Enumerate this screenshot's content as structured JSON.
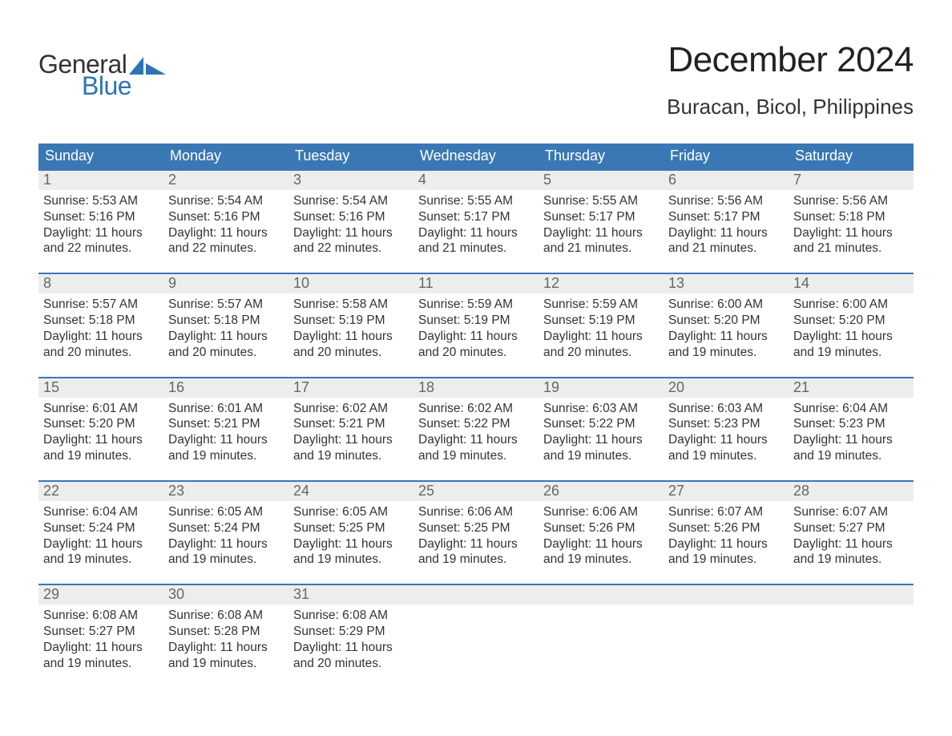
{
  "logo": {
    "text_general": "General",
    "text_blue": "Blue"
  },
  "title": "December 2024",
  "location": "Buracan, Bicol, Philippines",
  "colors": {
    "header_bg": "#3a78b5",
    "daynum_bg": "#ededed",
    "body_text": "#333333",
    "header_text": "#ffffff",
    "logo_blue": "#2f73b4",
    "page_bg": "#ffffff"
  },
  "day_headers": [
    "Sunday",
    "Monday",
    "Tuesday",
    "Wednesday",
    "Thursday",
    "Friday",
    "Saturday"
  ],
  "weeks": [
    [
      {
        "n": "1",
        "sunrise": "5:53 AM",
        "sunset": "5:16 PM",
        "daylight": "11 hours and 22 minutes."
      },
      {
        "n": "2",
        "sunrise": "5:54 AM",
        "sunset": "5:16 PM",
        "daylight": "11 hours and 22 minutes."
      },
      {
        "n": "3",
        "sunrise": "5:54 AM",
        "sunset": "5:16 PM",
        "daylight": "11 hours and 22 minutes."
      },
      {
        "n": "4",
        "sunrise": "5:55 AM",
        "sunset": "5:17 PM",
        "daylight": "11 hours and 21 minutes."
      },
      {
        "n": "5",
        "sunrise": "5:55 AM",
        "sunset": "5:17 PM",
        "daylight": "11 hours and 21 minutes."
      },
      {
        "n": "6",
        "sunrise": "5:56 AM",
        "sunset": "5:17 PM",
        "daylight": "11 hours and 21 minutes."
      },
      {
        "n": "7",
        "sunrise": "5:56 AM",
        "sunset": "5:18 PM",
        "daylight": "11 hours and 21 minutes."
      }
    ],
    [
      {
        "n": "8",
        "sunrise": "5:57 AM",
        "sunset": "5:18 PM",
        "daylight": "11 hours and 20 minutes."
      },
      {
        "n": "9",
        "sunrise": "5:57 AM",
        "sunset": "5:18 PM",
        "daylight": "11 hours and 20 minutes."
      },
      {
        "n": "10",
        "sunrise": "5:58 AM",
        "sunset": "5:19 PM",
        "daylight": "11 hours and 20 minutes."
      },
      {
        "n": "11",
        "sunrise": "5:59 AM",
        "sunset": "5:19 PM",
        "daylight": "11 hours and 20 minutes."
      },
      {
        "n": "12",
        "sunrise": "5:59 AM",
        "sunset": "5:19 PM",
        "daylight": "11 hours and 20 minutes."
      },
      {
        "n": "13",
        "sunrise": "6:00 AM",
        "sunset": "5:20 PM",
        "daylight": "11 hours and 19 minutes."
      },
      {
        "n": "14",
        "sunrise": "6:00 AM",
        "sunset": "5:20 PM",
        "daylight": "11 hours and 19 minutes."
      }
    ],
    [
      {
        "n": "15",
        "sunrise": "6:01 AM",
        "sunset": "5:20 PM",
        "daylight": "11 hours and 19 minutes."
      },
      {
        "n": "16",
        "sunrise": "6:01 AM",
        "sunset": "5:21 PM",
        "daylight": "11 hours and 19 minutes."
      },
      {
        "n": "17",
        "sunrise": "6:02 AM",
        "sunset": "5:21 PM",
        "daylight": "11 hours and 19 minutes."
      },
      {
        "n": "18",
        "sunrise": "6:02 AM",
        "sunset": "5:22 PM",
        "daylight": "11 hours and 19 minutes."
      },
      {
        "n": "19",
        "sunrise": "6:03 AM",
        "sunset": "5:22 PM",
        "daylight": "11 hours and 19 minutes."
      },
      {
        "n": "20",
        "sunrise": "6:03 AM",
        "sunset": "5:23 PM",
        "daylight": "11 hours and 19 minutes."
      },
      {
        "n": "21",
        "sunrise": "6:04 AM",
        "sunset": "5:23 PM",
        "daylight": "11 hours and 19 minutes."
      }
    ],
    [
      {
        "n": "22",
        "sunrise": "6:04 AM",
        "sunset": "5:24 PM",
        "daylight": "11 hours and 19 minutes."
      },
      {
        "n": "23",
        "sunrise": "6:05 AM",
        "sunset": "5:24 PM",
        "daylight": "11 hours and 19 minutes."
      },
      {
        "n": "24",
        "sunrise": "6:05 AM",
        "sunset": "5:25 PM",
        "daylight": "11 hours and 19 minutes."
      },
      {
        "n": "25",
        "sunrise": "6:06 AM",
        "sunset": "5:25 PM",
        "daylight": "11 hours and 19 minutes."
      },
      {
        "n": "26",
        "sunrise": "6:06 AM",
        "sunset": "5:26 PM",
        "daylight": "11 hours and 19 minutes."
      },
      {
        "n": "27",
        "sunrise": "6:07 AM",
        "sunset": "5:26 PM",
        "daylight": "11 hours and 19 minutes."
      },
      {
        "n": "28",
        "sunrise": "6:07 AM",
        "sunset": "5:27 PM",
        "daylight": "11 hours and 19 minutes."
      }
    ],
    [
      {
        "n": "29",
        "sunrise": "6:08 AM",
        "sunset": "5:27 PM",
        "daylight": "11 hours and 19 minutes."
      },
      {
        "n": "30",
        "sunrise": "6:08 AM",
        "sunset": "5:28 PM",
        "daylight": "11 hours and 19 minutes."
      },
      {
        "n": "31",
        "sunrise": "6:08 AM",
        "sunset": "5:29 PM",
        "daylight": "11 hours and 20 minutes."
      },
      null,
      null,
      null,
      null
    ]
  ],
  "labels": {
    "sunrise_prefix": "Sunrise: ",
    "sunset_prefix": "Sunset: ",
    "daylight_prefix": "Daylight: "
  }
}
